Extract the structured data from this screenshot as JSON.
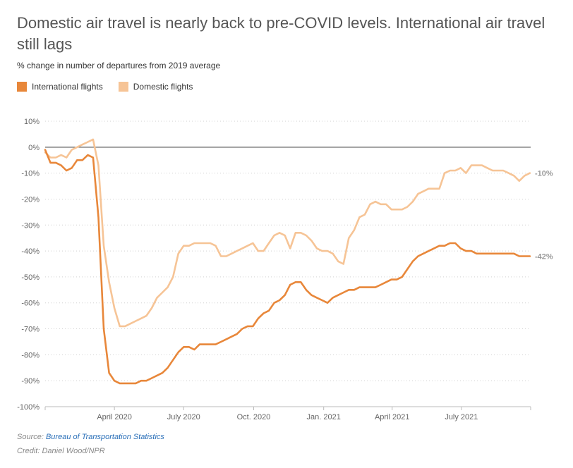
{
  "header": {
    "title": "Domestic air travel is nearly back to pre-COVID levels. International air travel still lags",
    "subtitle": "% change in number of departures from 2019 average"
  },
  "legend": [
    {
      "label": "International flights",
      "color": "#e8873a"
    },
    {
      "label": "Domestic flights",
      "color": "#f6c496"
    }
  ],
  "footer": {
    "source_prefix": "Source: ",
    "source_link": "Bureau of Transportation Statistics",
    "credit": "Credit: Daniel Wood/NPR"
  },
  "chart_data": {
    "type": "line",
    "ylim": [
      -100,
      10
    ],
    "yticks": [
      10,
      0,
      -10,
      -20,
      -30,
      -40,
      -50,
      -60,
      -70,
      -80,
      -90,
      -100
    ],
    "ytick_labels": [
      "10%",
      "0%",
      "-10%",
      "-20%",
      "-30%",
      "-40%",
      "-50%",
      "-60%",
      "-70%",
      "-80%",
      "-90%",
      "-100%"
    ],
    "xlim": [
      "2020-01-01",
      "2021-09-30"
    ],
    "xticks": [
      "2020-04-01",
      "2020-07-01",
      "2020-10-01",
      "2021-01-01",
      "2021-04-01",
      "2021-07-01"
    ],
    "xtick_labels": [
      "April 2020",
      "July 2020",
      "Oct. 2020",
      "Jan. 2021",
      "April 2021",
      "July 2021"
    ],
    "end_labels": [
      "-42%",
      "-10%"
    ],
    "series": [
      {
        "name": "International flights",
        "color": "#e8873a",
        "x": [
          "2020-01-01",
          "2020-01-08",
          "2020-01-15",
          "2020-01-22",
          "2020-01-29",
          "2020-02-05",
          "2020-02-12",
          "2020-02-19",
          "2020-02-26",
          "2020-03-04",
          "2020-03-11",
          "2020-03-18",
          "2020-03-25",
          "2020-04-01",
          "2020-04-08",
          "2020-04-15",
          "2020-04-22",
          "2020-04-29",
          "2020-05-06",
          "2020-05-13",
          "2020-05-20",
          "2020-05-27",
          "2020-06-03",
          "2020-06-10",
          "2020-06-17",
          "2020-06-24",
          "2020-07-01",
          "2020-07-08",
          "2020-07-15",
          "2020-07-22",
          "2020-07-29",
          "2020-08-05",
          "2020-08-12",
          "2020-08-19",
          "2020-08-26",
          "2020-09-02",
          "2020-09-09",
          "2020-09-16",
          "2020-09-23",
          "2020-09-30",
          "2020-10-07",
          "2020-10-14",
          "2020-10-21",
          "2020-10-28",
          "2020-11-04",
          "2020-11-11",
          "2020-11-18",
          "2020-11-25",
          "2020-12-02",
          "2020-12-09",
          "2020-12-16",
          "2020-12-23",
          "2020-12-30",
          "2021-01-06",
          "2021-01-13",
          "2021-01-20",
          "2021-01-27",
          "2021-02-03",
          "2021-02-10",
          "2021-02-17",
          "2021-02-24",
          "2021-03-03",
          "2021-03-10",
          "2021-03-17",
          "2021-03-24",
          "2021-03-31",
          "2021-04-07",
          "2021-04-14",
          "2021-04-21",
          "2021-04-28",
          "2021-05-05",
          "2021-05-12",
          "2021-05-19",
          "2021-05-26",
          "2021-06-02",
          "2021-06-09",
          "2021-06-16",
          "2021-06-23",
          "2021-06-30",
          "2021-07-07",
          "2021-07-14",
          "2021-07-21",
          "2021-07-28",
          "2021-08-04",
          "2021-08-11",
          "2021-08-18",
          "2021-08-25",
          "2021-09-01",
          "2021-09-08",
          "2021-09-15",
          "2021-09-22",
          "2021-09-29"
        ],
        "values": [
          -1,
          -6,
          -6,
          -7,
          -9,
          -8,
          -5,
          -5,
          -3,
          -4,
          -27,
          -70,
          -87,
          -90,
          -91,
          -91,
          -91,
          -91,
          -90,
          -90,
          -89,
          -88,
          -87,
          -85,
          -82,
          -79,
          -77,
          -77,
          -78,
          -76,
          -76,
          -76,
          -76,
          -75,
          -74,
          -73,
          -72,
          -70,
          -69,
          -69,
          -66,
          -64,
          -63,
          -60,
          -59,
          -57,
          -53,
          -52,
          -52,
          -55,
          -57,
          -58,
          -59,
          -60,
          -58,
          -57,
          -56,
          -55,
          -55,
          -54,
          -54,
          -54,
          -54,
          -53,
          -52,
          -51,
          -51,
          -50,
          -47,
          -44,
          -42,
          -41,
          -40,
          -39,
          -38,
          -38,
          -37,
          -37,
          -39,
          -40,
          -40,
          -41,
          -41,
          -41,
          -41,
          -41,
          -41,
          -41,
          -41,
          -42,
          -42,
          -42
        ]
      },
      {
        "name": "Domestic flights",
        "color": "#f6c496",
        "x": [
          "2020-01-01",
          "2020-01-08",
          "2020-01-15",
          "2020-01-22",
          "2020-01-29",
          "2020-02-05",
          "2020-02-12",
          "2020-02-19",
          "2020-02-26",
          "2020-03-04",
          "2020-03-11",
          "2020-03-18",
          "2020-03-25",
          "2020-04-01",
          "2020-04-08",
          "2020-04-15",
          "2020-04-22",
          "2020-04-29",
          "2020-05-06",
          "2020-05-13",
          "2020-05-20",
          "2020-05-27",
          "2020-06-03",
          "2020-06-10",
          "2020-06-17",
          "2020-06-24",
          "2020-07-01",
          "2020-07-08",
          "2020-07-15",
          "2020-07-22",
          "2020-07-29",
          "2020-08-05",
          "2020-08-12",
          "2020-08-19",
          "2020-08-26",
          "2020-09-02",
          "2020-09-09",
          "2020-09-16",
          "2020-09-23",
          "2020-09-30",
          "2020-10-07",
          "2020-10-14",
          "2020-10-21",
          "2020-10-28",
          "2020-11-04",
          "2020-11-11",
          "2020-11-18",
          "2020-11-25",
          "2020-12-02",
          "2020-12-09",
          "2020-12-16",
          "2020-12-23",
          "2020-12-30",
          "2021-01-06",
          "2021-01-13",
          "2021-01-20",
          "2021-01-27",
          "2021-02-03",
          "2021-02-10",
          "2021-02-17",
          "2021-02-24",
          "2021-03-03",
          "2021-03-10",
          "2021-03-17",
          "2021-03-24",
          "2021-03-31",
          "2021-04-07",
          "2021-04-14",
          "2021-04-21",
          "2021-04-28",
          "2021-05-05",
          "2021-05-12",
          "2021-05-19",
          "2021-05-26",
          "2021-06-02",
          "2021-06-09",
          "2021-06-16",
          "2021-06-23",
          "2021-06-30",
          "2021-07-07",
          "2021-07-14",
          "2021-07-21",
          "2021-07-28",
          "2021-08-04",
          "2021-08-11",
          "2021-08-18",
          "2021-08-25",
          "2021-09-01",
          "2021-09-08",
          "2021-09-15",
          "2021-09-22",
          "2021-09-29"
        ],
        "values": [
          -2,
          -4,
          -4,
          -3,
          -4,
          -1,
          0,
          1,
          2,
          3,
          -7,
          -38,
          -52,
          -62,
          -69,
          -69,
          -68,
          -67,
          -66,
          -65,
          -62,
          -58,
          -56,
          -54,
          -50,
          -41,
          -38,
          -38,
          -37,
          -37,
          -37,
          -37,
          -38,
          -42,
          -42,
          -41,
          -40,
          -39,
          -38,
          -37,
          -40,
          -40,
          -37,
          -34,
          -33,
          -34,
          -39,
          -33,
          -33,
          -34,
          -36,
          -39,
          -40,
          -40,
          -41,
          -44,
          -45,
          -35,
          -32,
          -27,
          -26,
          -22,
          -21,
          -22,
          -22,
          -24,
          -24,
          -24,
          -23,
          -21,
          -18,
          -17,
          -16,
          -16,
          -16,
          -10,
          -9,
          -9,
          -8,
          -10,
          -7,
          -7,
          -7,
          -8,
          -9,
          -9,
          -9,
          -10,
          -11,
          -13,
          -11,
          -10
        ]
      }
    ]
  }
}
